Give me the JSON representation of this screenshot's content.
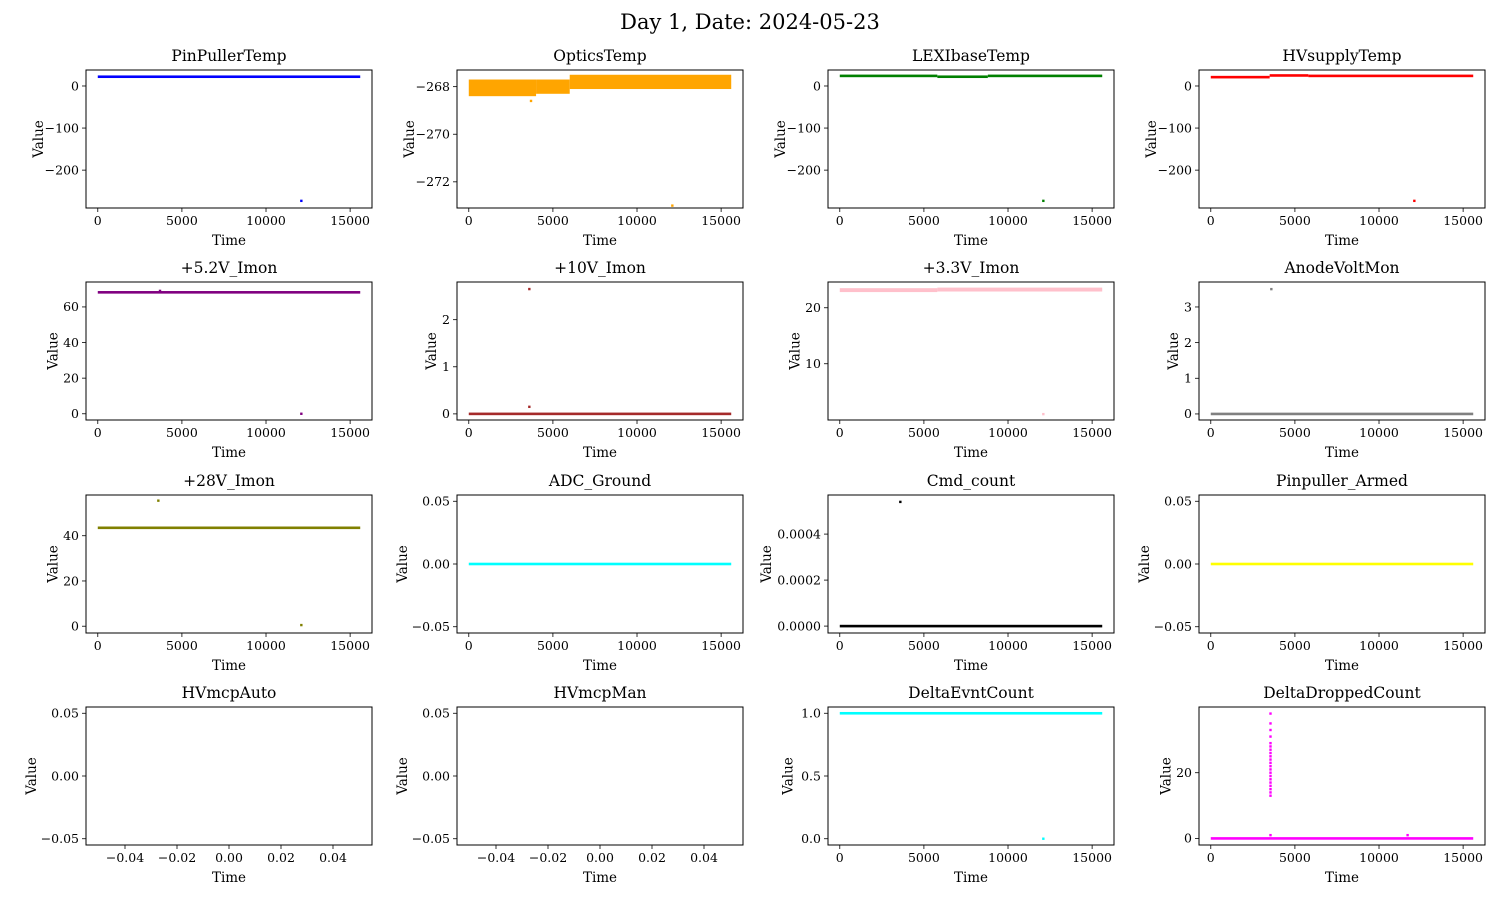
{
  "suptitle": "Day 1, Date: 2024-05-23",
  "chart_data": [
    {
      "type": "scatter",
      "title": "PinPullerTemp",
      "xlabel": "Time",
      "ylabel": "Value",
      "color": "#0000ff",
      "xlim": [
        -700,
        16300
      ],
      "ylim": [
        -290,
        38
      ],
      "xticks": [
        0,
        5000,
        10000,
        15000
      ],
      "yticks": [
        -200,
        -100,
        0
      ],
      "ytick_labels": [
        "−200",
        "−100",
        "0"
      ],
      "series": [
        {
          "band": [
            0,
            15600,
            22,
            22
          ]
        }
      ],
      "points": [
        [
          12100,
          -273
        ]
      ]
    },
    {
      "type": "scatter",
      "title": "OpticsTemp",
      "xlabel": "Time",
      "ylabel": "Value",
      "color": "#ffa500",
      "xlim": [
        -700,
        16300
      ],
      "ylim": [
        -273.1,
        -267.3
      ],
      "xticks": [
        0,
        5000,
        10000,
        15000
      ],
      "yticks": [
        -272,
        -270,
        -268
      ],
      "ytick_labels": [
        "−272",
        "−270",
        "−268"
      ],
      "series": [
        {
          "band": [
            0,
            4000,
            -268.4,
            -267.7
          ]
        },
        {
          "band": [
            4000,
            6000,
            -268.3,
            -267.7
          ]
        },
        {
          "band": [
            6000,
            15600,
            -268.1,
            -267.5
          ]
        }
      ],
      "points": [
        [
          3700,
          -268.6
        ],
        [
          12100,
          -273
        ]
      ]
    },
    {
      "type": "scatter",
      "title": "LEXIbaseTemp",
      "xlabel": "Time",
      "ylabel": "Value",
      "color": "#008000",
      "xlim": [
        -700,
        16300
      ],
      "ylim": [
        -290,
        38
      ],
      "xticks": [
        0,
        5000,
        10000,
        15000
      ],
      "yticks": [
        -200,
        -100,
        0
      ],
      "ytick_labels": [
        "−200",
        "−100",
        "0"
      ],
      "series": [
        {
          "band": [
            0,
            5800,
            22,
            24
          ]
        },
        {
          "band": [
            5800,
            8800,
            20,
            22
          ]
        },
        {
          "band": [
            8800,
            15600,
            22,
            24
          ]
        }
      ],
      "points": [
        [
          12100,
          -273
        ]
      ]
    },
    {
      "type": "scatter",
      "title": "HVsupplyTemp",
      "xlabel": "Time",
      "ylabel": "Value",
      "color": "#ff0000",
      "xlim": [
        -700,
        16300
      ],
      "ylim": [
        -290,
        38
      ],
      "xticks": [
        0,
        5000,
        10000,
        15000
      ],
      "yticks": [
        -200,
        -100,
        0
      ],
      "ytick_labels": [
        "−200",
        "−100",
        "0"
      ],
      "series": [
        {
          "band": [
            0,
            3500,
            19,
            21
          ]
        },
        {
          "band": [
            3500,
            5800,
            23,
            25
          ]
        },
        {
          "band": [
            5800,
            15600,
            21,
            24
          ]
        }
      ],
      "points": [
        [
          12100,
          -273
        ]
      ]
    },
    {
      "type": "scatter",
      "title": "+5.2V_Imon",
      "xlabel": "Time",
      "ylabel": "Value",
      "color": "#800080",
      "xlim": [
        -700,
        16300
      ],
      "ylim": [
        -3.5,
        74
      ],
      "xticks": [
        0,
        5000,
        10000,
        15000
      ],
      "yticks": [
        0,
        20,
        40,
        60
      ],
      "ytick_labels": [
        "0",
        "20",
        "40",
        "60"
      ],
      "series": [
        {
          "band": [
            0,
            15600,
            66.8,
            68.2
          ]
        }
      ],
      "points": [
        [
          3700,
          69
        ],
        [
          12100,
          0
        ]
      ]
    },
    {
      "type": "scatter",
      "title": "+10V_Imon",
      "xlabel": "Time",
      "ylabel": "Value",
      "color": "#a52a2a",
      "xlim": [
        -700,
        16300
      ],
      "ylim": [
        -0.13,
        2.8
      ],
      "xticks": [
        0,
        5000,
        10000,
        15000
      ],
      "yticks": [
        0,
        1,
        2
      ],
      "ytick_labels": [
        "0",
        "1",
        "2"
      ],
      "series": [
        {
          "band": [
            0,
            15600,
            0,
            0
          ]
        }
      ],
      "points": [
        [
          3600,
          2.65
        ],
        [
          3600,
          0.15
        ]
      ]
    },
    {
      "type": "scatter",
      "title": "+3.3V_Imon",
      "xlabel": "Time",
      "ylabel": "Value",
      "color": "#ffc0cb",
      "xlim": [
        -700,
        16300
      ],
      "ylim": [
        -0.05,
        24.6
      ],
      "xticks": [
        0,
        5000,
        10000,
        15000
      ],
      "yticks": [
        10,
        20
      ],
      "ytick_labels": [
        "10",
        "20"
      ],
      "series": [
        {
          "band": [
            0,
            5800,
            22.8,
            23.5
          ]
        },
        {
          "band": [
            5800,
            15600,
            22.9,
            23.6
          ]
        }
      ],
      "points": [
        [
          12100,
          1
        ]
      ]
    },
    {
      "type": "scatter",
      "title": "AnodeVoltMon",
      "xlabel": "Time",
      "ylabel": "Value",
      "color": "#808080",
      "xlim": [
        -700,
        16300
      ],
      "ylim": [
        -0.17,
        3.7
      ],
      "xticks": [
        0,
        5000,
        10000,
        15000
      ],
      "yticks": [
        0,
        1,
        2,
        3
      ],
      "ytick_labels": [
        "0",
        "1",
        "2",
        "3"
      ],
      "series": [
        {
          "band": [
            0,
            15600,
            0,
            0
          ]
        }
      ],
      "points": [
        [
          3600,
          3.5
        ]
      ]
    },
    {
      "type": "scatter",
      "title": "+28V_Imon",
      "xlabel": "Time",
      "ylabel": "Value",
      "color": "#808000",
      "xlim": [
        -700,
        16300
      ],
      "ylim": [
        -3,
        58
      ],
      "xticks": [
        0,
        5000,
        10000,
        15000
      ],
      "yticks": [
        0,
        20,
        40
      ],
      "ytick_labels": [
        "0",
        "20",
        "40"
      ],
      "series": [
        {
          "band": [
            0,
            15600,
            42.5,
            43.5
          ]
        }
      ],
      "points": [
        [
          3600,
          55.5
        ],
        [
          12100,
          0.5
        ]
      ]
    },
    {
      "type": "scatter",
      "title": "ADC_Ground",
      "xlabel": "Time",
      "ylabel": "Value",
      "color": "#00ffff",
      "xlim": [
        -700,
        16300
      ],
      "ylim": [
        -0.055,
        0.055
      ],
      "xticks": [
        0,
        5000,
        10000,
        15000
      ],
      "yticks": [
        -0.05,
        0,
        0.05
      ],
      "ytick_labels": [
        "−0.05",
        "0.00",
        "0.05"
      ],
      "series": [
        {
          "band": [
            0,
            15600,
            0,
            0
          ]
        }
      ],
      "points": []
    },
    {
      "type": "scatter",
      "title": "Cmd_count",
      "xlabel": "Time",
      "ylabel": "Value",
      "color": "#000000",
      "xlim": [
        -700,
        16300
      ],
      "ylim": [
        -3e-05,
        0.00057
      ],
      "xticks": [
        0,
        5000,
        10000,
        15000
      ],
      "yticks": [
        0,
        0.0002,
        0.0004
      ],
      "ytick_labels": [
        "0.0000",
        "0.0002",
        "0.0004"
      ],
      "series": [
        {
          "band": [
            0,
            15600,
            0,
            0
          ]
        }
      ],
      "points": [
        [
          3600,
          0.00054
        ]
      ]
    },
    {
      "type": "scatter",
      "title": "Pinpuller_Armed",
      "xlabel": "Time",
      "ylabel": "Value",
      "color": "#ffff00",
      "xlim": [
        -700,
        16300
      ],
      "ylim": [
        -0.055,
        0.055
      ],
      "xticks": [
        0,
        5000,
        10000,
        15000
      ],
      "yticks": [
        -0.05,
        0,
        0.05
      ],
      "ytick_labels": [
        "−0.05",
        "0.00",
        "0.05"
      ],
      "series": [
        {
          "band": [
            0,
            15600,
            0,
            0
          ]
        }
      ],
      "points": []
    },
    {
      "type": "scatter",
      "title": "HVmcpAuto",
      "xlabel": "Time",
      "ylabel": "Value",
      "color": "#000000",
      "xlim": [
        -0.055,
        0.055
      ],
      "ylim": [
        -0.055,
        0.055
      ],
      "xticks": [
        -0.04,
        -0.02,
        0,
        0.02,
        0.04
      ],
      "yticks": [
        -0.05,
        0,
        0.05
      ],
      "xtick_labels": [
        "−0.04",
        "−0.02",
        "0.00",
        "0.02",
        "0.04"
      ],
      "ytick_labels": [
        "−0.05",
        "0.00",
        "0.05"
      ],
      "series": [],
      "points": []
    },
    {
      "type": "scatter",
      "title": "HVmcpMan",
      "xlabel": "Time",
      "ylabel": "Value",
      "color": "#000000",
      "xlim": [
        -0.055,
        0.055
      ],
      "ylim": [
        -0.055,
        0.055
      ],
      "xticks": [
        -0.04,
        -0.02,
        0,
        0.02,
        0.04
      ],
      "yticks": [
        -0.05,
        0,
        0.05
      ],
      "xtick_labels": [
        "−0.04",
        "−0.02",
        "0.00",
        "0.02",
        "0.04"
      ],
      "ytick_labels": [
        "−0.05",
        "0.00",
        "0.05"
      ],
      "series": [],
      "points": []
    },
    {
      "type": "scatter",
      "title": "DeltaEvntCount",
      "xlabel": "Time",
      "ylabel": "Value",
      "color": "#00ffff",
      "xlim": [
        -700,
        16300
      ],
      "ylim": [
        -0.05,
        1.05
      ],
      "xticks": [
        0,
        5000,
        10000,
        15000
      ],
      "yticks": [
        0,
        0.5,
        1
      ],
      "ytick_labels": [
        "0.0",
        "0.5",
        "1.0"
      ],
      "series": [
        {
          "band": [
            0,
            15600,
            1,
            1
          ]
        }
      ],
      "points": [
        [
          12100,
          0
        ]
      ]
    },
    {
      "type": "scatter",
      "title": "DeltaDroppedCount",
      "xlabel": "Time",
      "ylabel": "Value",
      "color": "#ff00ff",
      "xlim": [
        -700,
        16300
      ],
      "ylim": [
        -2,
        40
      ],
      "xticks": [
        0,
        5000,
        10000,
        15000
      ],
      "yticks": [
        0,
        20
      ],
      "ytick_labels": [
        "0",
        "20"
      ],
      "series": [
        {
          "band": [
            0,
            15600,
            0,
            0
          ]
        }
      ],
      "points": [
        [
          3550,
          38
        ],
        [
          3550,
          35
        ],
        [
          3550,
          33
        ],
        [
          3550,
          31
        ],
        [
          3550,
          29
        ],
        [
          3550,
          28
        ],
        [
          3550,
          27
        ],
        [
          3550,
          26
        ],
        [
          3550,
          25
        ],
        [
          3550,
          24
        ],
        [
          3550,
          23
        ],
        [
          3550,
          22
        ],
        [
          3550,
          21
        ],
        [
          3550,
          20
        ],
        [
          3550,
          19
        ],
        [
          3550,
          18
        ],
        [
          3550,
          17
        ],
        [
          3550,
          16
        ],
        [
          3550,
          15
        ],
        [
          3550,
          14
        ],
        [
          3550,
          13
        ],
        [
          3550,
          1
        ],
        [
          11700,
          1
        ]
      ]
    }
  ]
}
